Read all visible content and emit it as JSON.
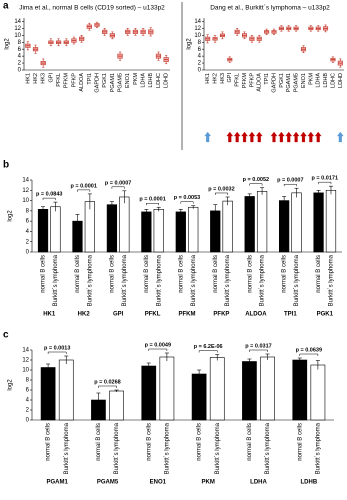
{
  "chart_data": [
    {
      "type": "box",
      "panel": "a",
      "title": "Jima et al., normal B cells (CD19 sorted) – u133p2",
      "y_label": "log2",
      "categories": [
        "HK1",
        "HK2",
        "HK3",
        "GPI",
        "PFKL",
        "PFKM",
        "PFKP",
        "ALDOA",
        "TPI1",
        "GAPDH",
        "PGK1",
        "PGAM1",
        "PGAM5",
        "ENO1",
        "PKM",
        "LDHA",
        "LDHB",
        "LDHC",
        "LDHD"
      ],
      "min": [
        5.8,
        4.8,
        0.8,
        7.0,
        7.0,
        7.0,
        7.5,
        8.0,
        11.5,
        12.2,
        10.0,
        9.0,
        2.8,
        10.0,
        10.0,
        10.0,
        9.8,
        2.8,
        1.8
      ],
      "q1": [
        6.5,
        5.5,
        1.5,
        7.6,
        7.6,
        7.6,
        8.0,
        8.5,
        12.0,
        12.6,
        10.5,
        9.5,
        3.4,
        10.5,
        10.5,
        10.5,
        10.4,
        3.4,
        2.4
      ],
      "median": [
        7.0,
        6.0,
        2.0,
        8.0,
        8.0,
        8.0,
        8.5,
        9.0,
        12.5,
        13.0,
        11.0,
        10.0,
        4.0,
        11.0,
        11.0,
        11.0,
        11.0,
        4.0,
        3.0
      ],
      "q3": [
        7.5,
        6.5,
        2.5,
        8.4,
        8.4,
        8.4,
        9.0,
        9.5,
        13.0,
        13.4,
        11.5,
        10.5,
        4.6,
        11.5,
        11.5,
        11.5,
        11.6,
        4.6,
        3.6
      ],
      "max": [
        8.2,
        7.2,
        3.2,
        9.0,
        9.0,
        9.0,
        9.5,
        10.0,
        13.5,
        13.8,
        12.0,
        11.0,
        5.2,
        12.0,
        12.0,
        12.0,
        12.2,
        5.2,
        4.2
      ],
      "color": "#f4a6a6",
      "edge_color": "#c0392b",
      "ylim": [
        0,
        15
      ],
      "yticks": [
        0,
        2,
        4,
        6,
        8,
        10,
        12,
        14
      ]
    },
    {
      "type": "box",
      "title": "Dang et al., Burkitt´s lymphoma – u133p2",
      "y_label": "log2",
      "categories": [
        "HK1",
        "HK2",
        "HK3",
        "GPI",
        "PFKL",
        "PFKM",
        "PFKP",
        "ALDOA",
        "TPI1",
        "GAPDH",
        "PGK1",
        "PGAM1",
        "PGAM5",
        "ENO1",
        "PKM",
        "LDHA",
        "LDHB",
        "LDHC",
        "LDHD"
      ],
      "min": [
        7.8,
        8.0,
        9.0,
        2.2,
        10.0,
        9.0,
        8.0,
        8.0,
        10.2,
        10.2,
        11.2,
        11.2,
        11.2,
        5.0,
        11.2,
        11.2,
        11.0,
        2.2,
        0.8
      ],
      "q1": [
        8.5,
        8.6,
        9.6,
        2.6,
        10.5,
        9.5,
        8.5,
        8.5,
        10.6,
        10.6,
        11.6,
        11.6,
        11.6,
        5.5,
        11.6,
        11.6,
        11.5,
        2.6,
        1.4
      ],
      "median": [
        9.0,
        9.0,
        10.0,
        3.0,
        11.0,
        10.0,
        9.0,
        9.0,
        11.0,
        11.0,
        12.0,
        12.0,
        12.0,
        6.0,
        12.0,
        12.0,
        12.0,
        3.0,
        2.0
      ],
      "q3": [
        9.5,
        9.4,
        10.4,
        3.4,
        11.5,
        10.5,
        9.5,
        9.5,
        11.4,
        11.4,
        12.4,
        12.4,
        12.4,
        6.5,
        12.4,
        12.4,
        12.5,
        3.4,
        2.6
      ],
      "max": [
        10.2,
        10.0,
        11.0,
        3.8,
        12.0,
        11.0,
        10.0,
        10.0,
        11.8,
        11.8,
        12.8,
        12.8,
        12.8,
        7.0,
        12.8,
        12.8,
        13.0,
        3.8,
        3.2
      ],
      "color": "#f4a6a6",
      "edge_color": "#c0392b",
      "arrow_colors": [
        "#5b9bd5",
        null,
        null,
        "#c00000",
        "#c00000",
        "#c00000",
        "#c00000",
        "#c00000",
        null,
        "#c00000",
        "#c00000",
        "#c00000",
        "#c00000",
        "#c00000",
        "#c00000",
        "#c00000",
        null,
        null,
        "#5b9bd5"
      ],
      "ylim": [
        0,
        15
      ],
      "yticks": [
        0,
        2,
        4,
        6,
        8,
        10,
        12,
        14
      ]
    },
    {
      "type": "bar",
      "panel": "b",
      "y_label": "log2",
      "categories": [
        "HK1",
        "HK2",
        "GPI",
        "PFKL",
        "PFKM",
        "PFKP",
        "ALDOA",
        "TPI1",
        "PGK1"
      ],
      "annotations": [
        "p = 0.0843",
        "p = 0.0001",
        "p = 0.0007",
        "p = 0.0001",
        "p = 0.0053",
        "p = 0.0032",
        "p = 0.0052",
        "p = 0.0007",
        "p = 0.0171"
      ],
      "series": [
        {
          "name": "normal B cells",
          "color": "#000000",
          "values": [
            8.3,
            6.0,
            9.2,
            7.8,
            7.8,
            8.0,
            10.8,
            10.0,
            11.5
          ],
          "errors": [
            0.5,
            1.3,
            0.6,
            0.5,
            0.5,
            1.2,
            0.5,
            0.8,
            0.5
          ]
        },
        {
          "name": "Burkitt´s lymphoma",
          "color": "#ffffff",
          "values": [
            8.8,
            9.8,
            10.7,
            8.3,
            8.7,
            9.9,
            11.8,
            11.5,
            12.0
          ],
          "errors": [
            0.9,
            1.5,
            1.2,
            0.4,
            0.3,
            0.8,
            0.7,
            0.9,
            0.8
          ]
        }
      ],
      "ylim": [
        0,
        14
      ],
      "yticks": [
        0,
        2,
        4,
        6,
        8,
        10,
        12,
        14
      ]
    },
    {
      "type": "bar",
      "panel": "c",
      "y_label": "log2",
      "categories": [
        "PGAM1",
        "PGAM5",
        "ENO1",
        "PKM",
        "LDHA",
        "LDHB"
      ],
      "annotations": [
        "p = 0.0013",
        "p = 0.0268",
        "p = 0.0049",
        "p = 6.2E-06",
        "p = 0.0317",
        "p = 0.0639"
      ],
      "series": [
        {
          "name": "normal B cells",
          "color": "#000000",
          "values": [
            10.5,
            4.0,
            10.8,
            9.2,
            11.7,
            12.0
          ],
          "errors": [
            0.7,
            1.4,
            0.6,
            0.8,
            0.5,
            0.4
          ]
        },
        {
          "name": "Burkitt´s lymphoma",
          "color": "#ffffff",
          "values": [
            12.0,
            5.8,
            12.6,
            12.5,
            12.6,
            11.0
          ],
          "errors": [
            0.8,
            0.2,
            0.8,
            0.6,
            0.6,
            0.9
          ]
        }
      ],
      "ylim": [
        0,
        14
      ],
      "yticks": [
        0,
        2,
        4,
        6,
        8,
        10,
        12,
        14
      ]
    }
  ]
}
